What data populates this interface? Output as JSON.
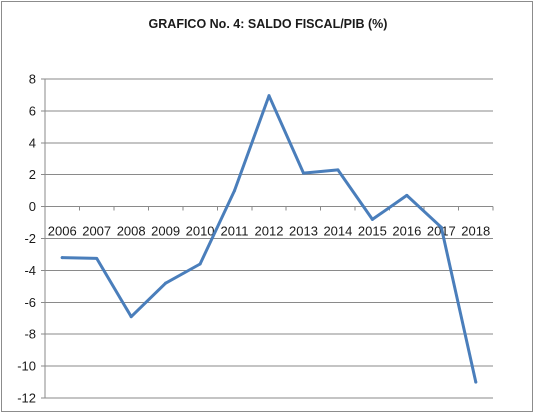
{
  "chart_data": {
    "type": "line",
    "title": "GRAFICO No. 4: SALDO FISCAL/PIB (%)",
    "xlabel": "",
    "ylabel": "",
    "ylim": [
      -12,
      8
    ],
    "yticks": [
      8,
      6,
      4,
      2,
      0,
      -2,
      -4,
      -6,
      -8,
      -10,
      -12
    ],
    "grid": true,
    "legend": "none",
    "x": [
      "2006",
      "2007",
      "2008",
      "2009",
      "2010",
      "2011",
      "2012",
      "2013",
      "2014",
      "2015",
      "2016",
      "2017",
      "2018"
    ],
    "series": [
      {
        "name": "",
        "color": "#4a7ebb",
        "values": [
          -3.2,
          -3.25,
          -6.9,
          -4.8,
          -3.6,
          1.0,
          6.95,
          2.1,
          2.3,
          -0.8,
          0.7,
          -1.3,
          -11.0
        ]
      }
    ]
  }
}
